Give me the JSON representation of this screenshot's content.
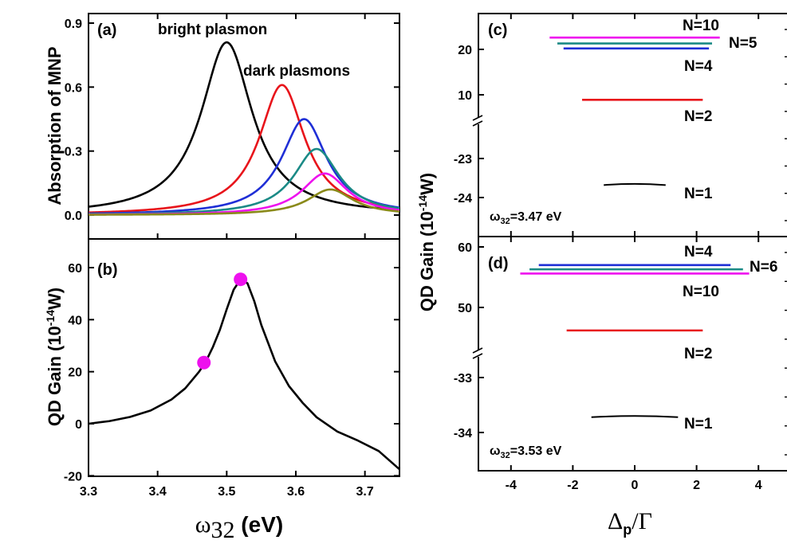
{
  "colors": {
    "black": "#000000",
    "red": "#e8141b",
    "blue": "#1f2fd6",
    "teal": "#1a8a86",
    "magenta": "#ee11ee",
    "olive": "#8a8a1a",
    "marker": "#ee11ee"
  },
  "left": {
    "ylabel_a": "Absorption of MNP",
    "ylabel_b": "QD Gain (10",
    "ylabel_b_exp": "-14",
    "ylabel_b_end": "W)",
    "xlabel_main": "ω",
    "xlabel_sub": "32",
    "xlabel_end": " (eV)"
  },
  "right": {
    "ylabel": "QD Gain (10",
    "ylabel_exp": "-14",
    "ylabel_end": "W)",
    "xlabel_main": "Δ",
    "xlabel_sub": "p",
    "xlabel_end": "/Γ"
  },
  "chart_data": [
    {
      "panel": "(a)",
      "type": "line",
      "ylabel": "Absorption of MNP",
      "xlim": [
        3.3,
        3.75
      ],
      "ylim": [
        0,
        0.95
      ],
      "yticks": [
        "0.0",
        "0.3",
        "0.6",
        "0.9"
      ],
      "annotations": [
        "bright plasmon",
        "dark plasmons"
      ],
      "series": [
        {
          "color": "black",
          "peak_x": 3.5,
          "peak_y": 0.81,
          "width": 0.045
        },
        {
          "color": "red",
          "peak_x": 3.58,
          "peak_y": 0.61,
          "width": 0.04
        },
        {
          "color": "blue",
          "peak_x": 3.612,
          "peak_y": 0.45,
          "width": 0.04
        },
        {
          "color": "teal",
          "peak_x": 3.63,
          "peak_y": 0.31,
          "width": 0.04
        },
        {
          "color": "magenta",
          "peak_x": 3.642,
          "peak_y": 0.195,
          "width": 0.04
        },
        {
          "color": "olive",
          "peak_x": 3.65,
          "peak_y": 0.12,
          "width": 0.04
        }
      ]
    },
    {
      "panel": "(b)",
      "type": "line",
      "ylabel": "QD Gain (10^-14 W)",
      "xlabel": "ω32 (eV)",
      "xlim": [
        3.3,
        3.75
      ],
      "ylim": [
        -20,
        70
      ],
      "yticks": [
        "-20",
        "0",
        "20",
        "40",
        "60"
      ],
      "xticks": [
        "3.3",
        "3.4",
        "3.5",
        "3.6",
        "3.7"
      ],
      "curve": {
        "x": [
          3.3,
          3.33,
          3.36,
          3.39,
          3.42,
          3.44,
          3.46,
          3.47,
          3.48,
          3.49,
          3.5,
          3.51,
          3.52,
          3.53,
          3.54,
          3.55,
          3.57,
          3.59,
          3.61,
          3.63,
          3.66,
          3.69,
          3.72,
          3.75
        ],
        "y": [
          0.0,
          1.0,
          2.6,
          5.1,
          9.3,
          13.6,
          20.0,
          24.0,
          29.5,
          36.0,
          44.0,
          51.5,
          55.5,
          54.0,
          47.0,
          38.0,
          24.0,
          14.5,
          8.0,
          2.5,
          -3.0,
          -6.5,
          -10.5,
          -17.5
        ]
      },
      "markers": [
        {
          "x": 3.467,
          "y": 23.5
        },
        {
          "x": 3.52,
          "y": 55.5
        }
      ]
    },
    {
      "panel": "(c)",
      "type": "line",
      "label": "ω32=3.47 eV",
      "xlim": [
        -5,
        5
      ],
      "upper_yticks": [
        "10",
        "20"
      ],
      "lower_yticks": [
        "-24",
        "-23"
      ],
      "series": [
        {
          "label": "N=1",
          "color": "black",
          "x0": -1.0,
          "x1": 1.0,
          "y": -23.65
        },
        {
          "label": "N=2",
          "color": "red",
          "x0": -1.7,
          "x1": 2.2,
          "y": 8.9
        },
        {
          "label": "N=4",
          "color": "blue",
          "x0": -2.3,
          "x1": 2.4,
          "y": 20.2
        },
        {
          "label": "N=5",
          "color": "teal",
          "x0": -2.5,
          "x1": 2.5,
          "y": 21.3
        },
        {
          "label": "N=10",
          "color": "magenta",
          "x0": -2.75,
          "x1": 2.75,
          "y": 22.6
        }
      ]
    },
    {
      "panel": "(d)",
      "type": "line",
      "label": "ω32=3.53 eV",
      "xlabel": "Δp/Γ",
      "xlim": [
        -5,
        5
      ],
      "xticks": [
        "-4",
        "-2",
        "0",
        "2",
        "4"
      ],
      "upper_yticks": [
        "50",
        "60"
      ],
      "lower_yticks": [
        "-34",
        "-33"
      ],
      "series": [
        {
          "label": "N=1",
          "color": "black",
          "x0": -1.4,
          "x1": 1.4,
          "y": -33.7
        },
        {
          "label": "N=2",
          "color": "red",
          "x0": -2.2,
          "x1": 2.2,
          "y": 46.2
        },
        {
          "label": "N=4",
          "color": "blue",
          "x0": -3.1,
          "x1": 3.1,
          "y": 57.0
        },
        {
          "label": "N=6",
          "color": "teal",
          "x0": -3.4,
          "x1": 3.5,
          "y": 56.3
        },
        {
          "label": "N=10",
          "color": "magenta",
          "x0": -3.7,
          "x1": 3.7,
          "y": 55.6
        }
      ]
    }
  ]
}
